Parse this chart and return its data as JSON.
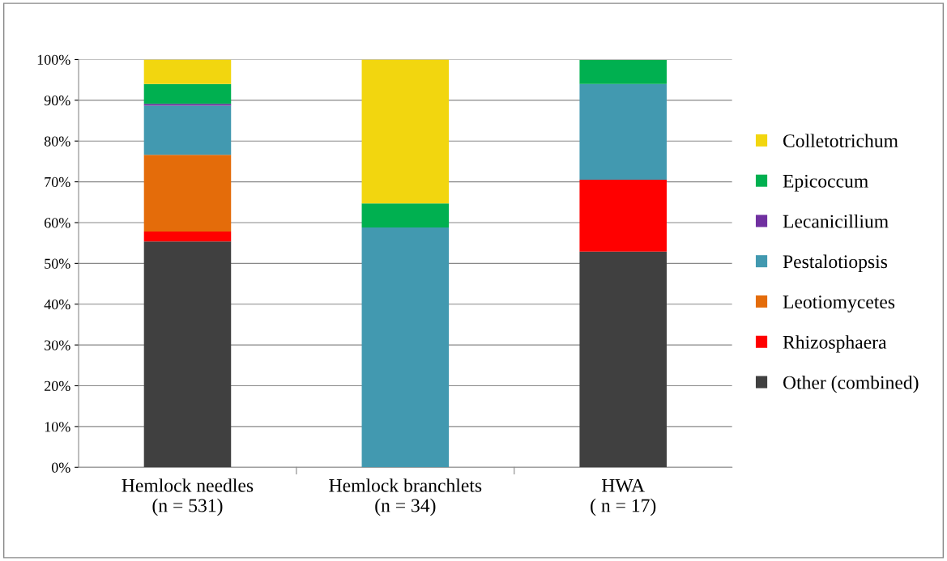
{
  "chart_data": {
    "type": "bar",
    "stacked": true,
    "categories": [
      "Hemlock needles\n(n = 531)",
      "Hemlock branchlets\n(n = 34)",
      "HWA\n( n = 17)"
    ],
    "series": [
      {
        "name": "Other (combined)",
        "color": "#404040",
        "values": [
          55.4,
          0,
          52.9
        ]
      },
      {
        "name": "Rhizosphaera",
        "color": "#ff0000",
        "values": [
          2.4,
          0,
          17.6
        ]
      },
      {
        "name": "Leotiomycetes",
        "color": "#e46c0a",
        "values": [
          18.8,
          0,
          0
        ]
      },
      {
        "name": "Pestalotiopsis",
        "color": "#4299b0",
        "values": [
          12.1,
          58.8,
          23.5
        ]
      },
      {
        "name": "Lecanicillium",
        "color": "#7030a0",
        "values": [
          0.4,
          0,
          0
        ]
      },
      {
        "name": "Epicoccum",
        "color": "#00b050",
        "values": [
          4.9,
          5.9,
          5.9
        ]
      },
      {
        "name": "Colletotrichum",
        "color": "#f2d60f",
        "values": [
          6.0,
          35.3,
          0
        ]
      }
    ],
    "ylim": [
      0,
      100
    ],
    "yticks": [
      {
        "value": 0,
        "label": "0%"
      },
      {
        "value": 10,
        "label": "10%"
      },
      {
        "value": 20,
        "label": "20%"
      },
      {
        "value": 30,
        "label": "30%"
      },
      {
        "value": 40,
        "label": "40%"
      },
      {
        "value": 50,
        "label": "50%"
      },
      {
        "value": 60,
        "label": "60%"
      },
      {
        "value": 70,
        "label": "70%"
      },
      {
        "value": 80,
        "label": "80%"
      },
      {
        "value": 90,
        "label": "90%"
      },
      {
        "value": 100,
        "label": "100%"
      }
    ],
    "grid": "y",
    "legend": "right"
  }
}
